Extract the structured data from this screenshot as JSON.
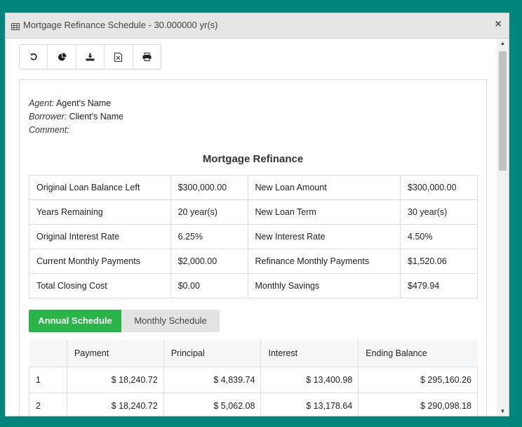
{
  "window": {
    "title": "Mortgage Refinance Schedule - 30.000000 yr(s)"
  },
  "toolbar": {
    "buttons": [
      {
        "icon": "refresh-icon"
      },
      {
        "icon": "pie-chart-icon"
      },
      {
        "icon": "download-icon"
      },
      {
        "icon": "excel-icon"
      },
      {
        "icon": "print-icon"
      }
    ]
  },
  "meta": {
    "agent_label": "Agent:",
    "agent_value": "Agent's Name",
    "borrower_label": "Borrower:",
    "borrower_value": "Client's Name",
    "comment_label": "Comment:"
  },
  "heading": "Mortgage Refinance",
  "summary": [
    [
      "Original Loan Balance Left",
      "$300,000.00",
      "New Loan Amount",
      "$300,000.00"
    ],
    [
      "Years Remaining",
      "20 year(s)",
      "New Loan Term",
      "30 year(s)"
    ],
    [
      "Original Interest Rate",
      "6.25%",
      "New Interest Rate",
      "4.50%"
    ],
    [
      "Current Monthly Payments",
      "$2,000.00",
      "Refinance Monthly Payments",
      "$1,520.06"
    ],
    [
      "Total Closing Cost",
      "$0.00",
      "Monthly Savings",
      "$479.94"
    ]
  ],
  "tabs": {
    "annual": "Annual Schedule",
    "monthly": "Monthly Schedule"
  },
  "schedule": {
    "headers": [
      "",
      "Payment",
      "Principal",
      "Interest",
      "Ending Balance"
    ],
    "rows": [
      [
        "1",
        "$ 18,240.72",
        "$ 4,839.74",
        "$ 13,400.98",
        "$ 295,160.26"
      ],
      [
        "2",
        "$ 18,240.72",
        "$ 5,062.08",
        "$ 13,178.64",
        "$ 290,098.18"
      ]
    ]
  }
}
